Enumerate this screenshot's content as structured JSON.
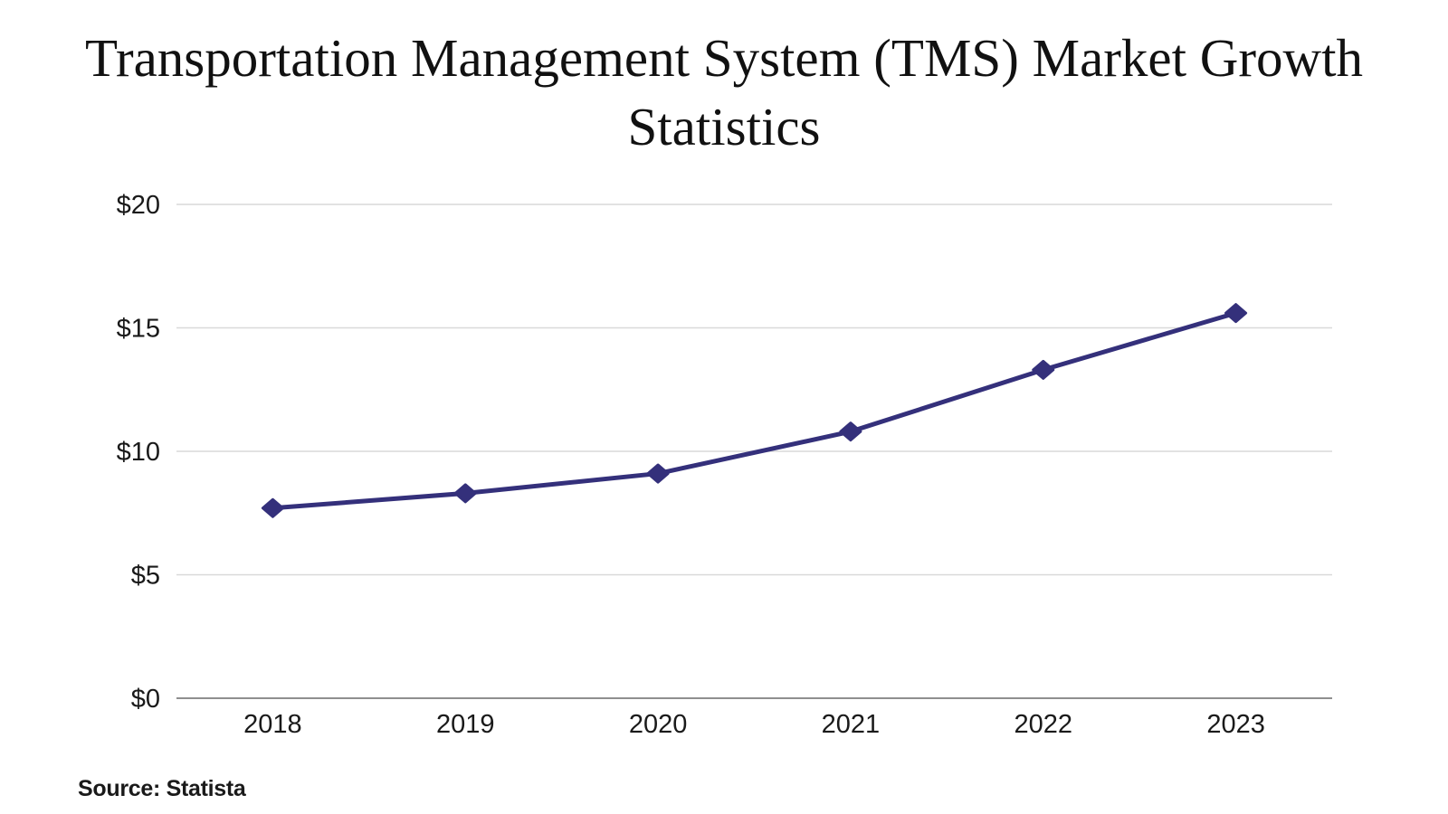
{
  "page": {
    "title_line1": "Transportation Management System (TMS) Market Growth",
    "title_line2": "Statistics",
    "source_label": "Source: Statista"
  },
  "colors": {
    "line": "#34307b",
    "marker": "#34307b",
    "gridline": "#d9d9d9",
    "axis_line": "#8f8f8f",
    "tick_text": "#1a1a1a",
    "title_text": "#111111",
    "source_text": "#1a1a1a",
    "background": "#ffffff"
  },
  "chart_data": {
    "type": "line",
    "title": "Transportation Management System (TMS) Market Growth Statistics",
    "categories": [
      "2018",
      "2019",
      "2020",
      "2021",
      "2022",
      "2023"
    ],
    "values": [
      7.7,
      8.3,
      9.1,
      10.8,
      13.3,
      15.6
    ],
    "xlabel": "",
    "ylabel": "",
    "ylim": [
      0,
      20
    ],
    "y_ticks": [
      0,
      5,
      10,
      15,
      20
    ],
    "y_tick_labels": [
      "$0",
      "$5",
      "$10",
      "$15",
      "$20"
    ],
    "grid": true,
    "legend": false,
    "marker_style": "diamond",
    "source": "Source: Statista"
  }
}
